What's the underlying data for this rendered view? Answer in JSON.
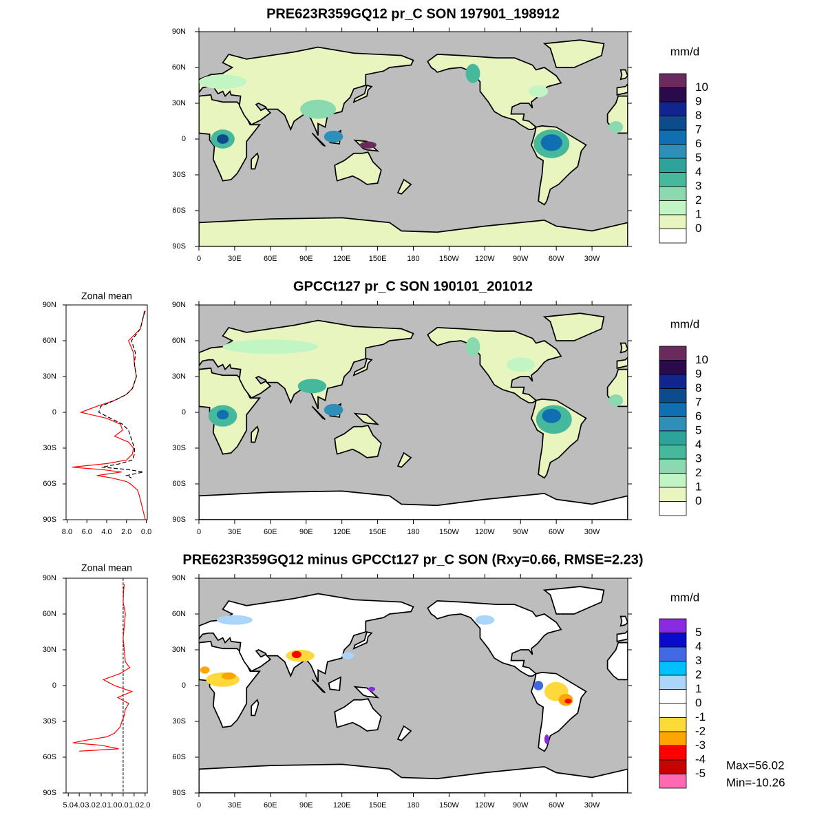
{
  "panels": [
    {
      "title": "PRE623R359GQ12 pr_C SON 197901_198912",
      "colorbar": {
        "unit": "mm/d",
        "labels": [
          10,
          9,
          8,
          7,
          6,
          5,
          4,
          3,
          2,
          1,
          0
        ],
        "colors": [
          "#6b2a5e",
          "#2a0a4a",
          "#11248f",
          "#0d4c8c",
          "#0f6fb0",
          "#2f8fb8",
          "#2ea39b",
          "#46b89c",
          "#8ad9b0",
          "#c2f5c4",
          "#e8f5bf",
          "#ffffff"
        ]
      }
    },
    {
      "title": "GPCCt127 pr_C SON 190101_201012",
      "colorbar": {
        "unit": "mm/d",
        "labels": [
          10,
          9,
          8,
          7,
          6,
          5,
          4,
          3,
          2,
          1,
          0
        ],
        "colors": [
          "#6b2a5e",
          "#2a0a4a",
          "#11248f",
          "#0d4c8c",
          "#0f6fb0",
          "#2f8fb8",
          "#2ea39b",
          "#46b89c",
          "#8ad9b0",
          "#c2f5c4",
          "#e8f5bf",
          "#ffffff"
        ]
      }
    },
    {
      "title": "PRE623R359GQ12 minus GPCCt127 pr_C SON (Rxy=0.66, RMSE=2.23)",
      "colorbar": {
        "unit": "mm/d",
        "labels": [
          5,
          4,
          3,
          2,
          1,
          0,
          -1,
          -2,
          -3,
          -4,
          -5
        ],
        "colors": [
          "#8a2be2",
          "#0a0acd",
          "#4169e1",
          "#00bfff",
          "#aad4f8",
          "#ffffff",
          "#ffffff",
          "#ffd93b",
          "#ffa500",
          "#ff0000",
          "#c80000",
          "#ff69b4"
        ]
      }
    }
  ],
  "map_axes": {
    "lat_ticks": [
      {
        "value": 90,
        "label": "90N"
      },
      {
        "value": 60,
        "label": "60N"
      },
      {
        "value": 30,
        "label": "30N"
      },
      0,
      {
        "value": -30,
        "label": "30S"
      },
      {
        "value": -60,
        "label": "60S"
      },
      {
        "value": -90,
        "label": "90S"
      }
    ],
    "lon_ticks": [
      0,
      {
        "value": 30,
        "label": "30E"
      },
      {
        "value": 60,
        "label": "60E"
      },
      {
        "value": 90,
        "label": "90E"
      },
      {
        "value": 120,
        "label": "120E"
      },
      {
        "value": 150,
        "label": "150E"
      },
      180,
      {
        "value": 210,
        "label": "150W"
      },
      {
        "value": 240,
        "label": "120W"
      },
      {
        "value": 270,
        "label": "90W"
      },
      {
        "value": 300,
        "label": "60W"
      },
      {
        "value": 330,
        "label": "30W"
      }
    ]
  },
  "zonal_means": [
    {
      "title": "Zonal mean",
      "xlim": [
        8.1,
        -0.1
      ],
      "xticks": [
        {
          "value": 8,
          "label": "8.0"
        },
        {
          "value": 6,
          "label": "6.0"
        },
        {
          "value": 4,
          "label": "4.0"
        },
        {
          "value": 2,
          "label": "2.0"
        },
        {
          "value": 0,
          "label": "0.0"
        }
      ],
      "lat": [
        85,
        80,
        70,
        60,
        50,
        40,
        30,
        20,
        15,
        10,
        5,
        0,
        -5,
        -10,
        -15,
        -20,
        -25,
        -30,
        -35,
        -40,
        -43,
        -46,
        -48,
        -50,
        -53,
        -55,
        -58,
        -60,
        -65,
        -70,
        -80,
        -90
      ],
      "series": [
        {
          "color": "#ff0000",
          "dashed": false,
          "values": [
            0.2,
            0.3,
            0.6,
            1.8,
            1.3,
            1.2,
            1.0,
            1.4,
            2.0,
            3.2,
            5.0,
            6.6,
            4.0,
            2.6,
            2.4,
            3.2,
            1.8,
            1.3,
            1.4,
            2.0,
            4.0,
            7.5,
            4.5,
            2.5,
            5.0,
            3.5,
            2.0,
            1.6,
            0.9,
            0.7,
            0.4,
            0.1
          ]
        },
        {
          "color": "#000000",
          "dashed": true,
          "values": [
            0.1,
            0.3,
            0.6,
            1.5,
            1.1,
            1.2,
            1.0,
            1.4,
            2.0,
            3.2,
            4.6,
            4.8,
            3.6,
            2.4,
            1.8,
            1.6,
            1.4,
            1.2,
            1.2,
            1.4,
            2.6,
            4.5,
            1.8,
            0.3,
            2.0,
            1.5,
            null,
            null,
            null,
            null,
            null,
            null
          ]
        }
      ]
    },
    {
      "title": "Zonal mean",
      "xlim": [
        -5.2,
        2.2
      ],
      "xticks": [
        {
          "value": -5,
          "label": "5.0"
        },
        {
          "value": -4,
          "label": "4.0"
        },
        {
          "value": -3,
          "label": "3.0"
        },
        {
          "value": -2,
          "label": "2.0"
        },
        {
          "value": -1,
          "label": "1.0"
        },
        {
          "value": 0,
          "label": "0.0"
        },
        {
          "value": 1,
          "label": "1.0"
        },
        {
          "value": 2,
          "label": "2.0"
        }
      ],
      "lat": [
        85,
        80,
        70,
        60,
        50,
        40,
        30,
        20,
        15,
        10,
        5,
        0,
        -5,
        -10,
        -15,
        -20,
        -25,
        -30,
        -35,
        -40,
        -43,
        -46,
        -48,
        -50,
        -53,
        -55
      ],
      "series": [
        {
          "color": "#ff0000",
          "dashed": false,
          "values": [
            0.1,
            0.05,
            0,
            0.2,
            0.1,
            0,
            0.1,
            0.2,
            0.6,
            -0.3,
            -1.8,
            -0.8,
            0.8,
            -0.5,
            0.5,
            0.2,
            0.1,
            -0.1,
            -0.3,
            -0.8,
            -1.5,
            -3.5,
            -4.6,
            -2.0,
            -0.4,
            -4.0
          ]
        }
      ]
    }
  ],
  "stats": [
    "Max=56.02",
    "Min=-10.26"
  ]
}
